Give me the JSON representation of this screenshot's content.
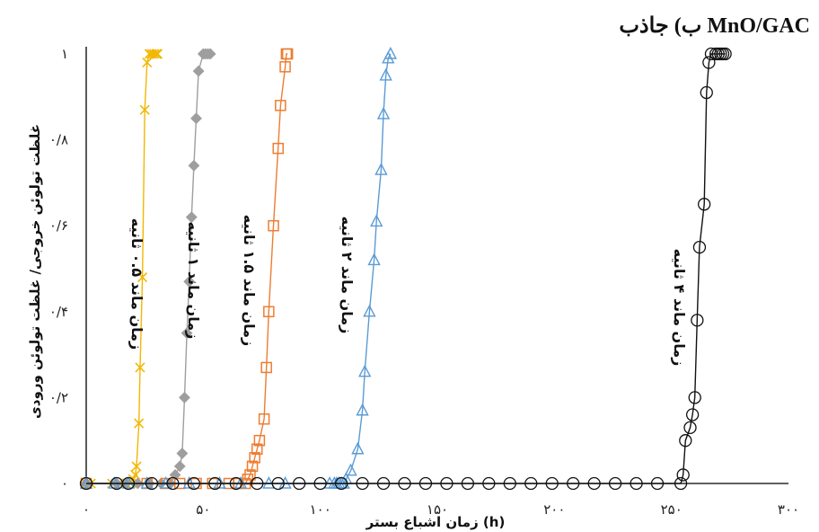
{
  "chart_data": {
    "type": "line",
    "title": "ب) جاذب MnO/GAC",
    "xlabel": "زمان اشباع بستر (h)",
    "ylabel": "غلظت تولوئن خروجی/ غلظت تولوئن ورودی",
    "xlim": [
      0,
      300
    ],
    "ylim": [
      0,
      1
    ],
    "xticks": [
      0,
      50,
      100,
      150,
      200,
      250,
      300
    ],
    "xtick_labels": [
      "۰",
      "۵۰",
      "۱۰۰",
      "۱۵۰",
      "۲۰۰",
      "۲۵۰",
      "۳۰۰"
    ],
    "yticks": [
      0,
      0.2,
      0.4,
      0.6,
      0.8,
      1
    ],
    "ytick_labels": [
      "۰",
      "۰/۲",
      "۰/۴",
      "۰/۶",
      "۰/۸",
      "۱"
    ],
    "grid": false,
    "legend": "none",
    "series": [
      {
        "name": "زمان ماند ۰.۵ ثانیه",
        "color": "#f2b705",
        "marker": "x",
        "x": [
          0,
          2,
          11,
          14,
          17,
          19,
          20,
          21,
          21.5,
          22.5,
          23,
          24,
          25,
          26,
          27,
          28,
          29,
          30,
          30.5
        ],
        "y": [
          0,
          0,
          0,
          0,
          0,
          0,
          0.01,
          0.02,
          0.04,
          0.14,
          0.27,
          0.48,
          0.87,
          0.98,
          1,
          1,
          1,
          1,
          1
        ]
      },
      {
        "name": "زمان ماند ۱ ثانیه",
        "color": "#9e9e9e",
        "marker": "diamond",
        "x": [
          0,
          13,
          17,
          22,
          27,
          32,
          36,
          38,
          40,
          41,
          42,
          43,
          44,
          45,
          46,
          47,
          48,
          50,
          51,
          52,
          53
        ],
        "y": [
          0,
          0,
          0,
          0,
          0,
          0,
          0,
          0.02,
          0.04,
          0.07,
          0.2,
          0.35,
          0.47,
          0.62,
          0.74,
          0.85,
          0.96,
          1,
          1,
          1,
          1
        ]
      },
      {
        "name": "زمان ماند ۱.۵ ثانیه",
        "color": "#ed7d31",
        "marker": "square",
        "x": [
          0,
          26,
          34,
          40,
          47,
          54,
          61,
          65,
          68,
          69,
          70,
          71,
          72,
          73,
          74,
          76,
          77,
          78,
          80,
          82,
          83,
          85,
          85.5,
          86
        ],
        "y": [
          0,
          0,
          0,
          0,
          0,
          0,
          0,
          0,
          0,
          0.01,
          0.02,
          0.04,
          0.06,
          0.08,
          0.1,
          0.15,
          0.27,
          0.4,
          0.6,
          0.78,
          0.88,
          0.97,
          1,
          1
        ]
      },
      {
        "name": "زمان ماند ۲ ثانیه",
        "color": "#5b9bd5",
        "marker": "triangle",
        "x": [
          0,
          12,
          18,
          26,
          34,
          44,
          57,
          66,
          78,
          85,
          104,
          106,
          107,
          108,
          109,
          110,
          111,
          113,
          116,
          118,
          119,
          121,
          123,
          124,
          126,
          127,
          128,
          129,
          130
        ],
        "y": [
          0,
          0,
          0,
          0,
          0,
          0,
          0,
          0,
          0,
          0,
          0,
          0,
          0,
          0,
          0,
          0,
          0.01,
          0.03,
          0.08,
          0.17,
          0.26,
          0.4,
          0.52,
          0.61,
          0.73,
          0.86,
          0.95,
          0.99,
          1
        ]
      },
      {
        "name": "زمان ماند ۴ ثانیه",
        "color": "#111111",
        "marker": "circle",
        "x": [
          0,
          13,
          18,
          28,
          37,
          46,
          55,
          64,
          73,
          82,
          91,
          100,
          109,
          118,
          127,
          136,
          145,
          154,
          163,
          172,
          181,
          190,
          199,
          208,
          217,
          226,
          235,
          244,
          254,
          255,
          256,
          258,
          259,
          260,
          261,
          262,
          264,
          265,
          266,
          267,
          269,
          270,
          271,
          272,
          273
        ],
        "y": [
          0,
          0,
          0,
          0,
          0,
          0,
          0,
          0,
          0,
          0,
          0,
          0,
          0,
          0,
          0,
          0,
          0,
          0,
          0,
          0,
          0,
          0,
          0,
          0,
          0,
          0,
          0,
          0,
          0,
          0.02,
          0.1,
          0.13,
          0.16,
          0.2,
          0.38,
          0.55,
          0.65,
          0.91,
          0.98,
          1,
          1,
          1,
          1,
          1,
          1
        ]
      }
    ]
  }
}
